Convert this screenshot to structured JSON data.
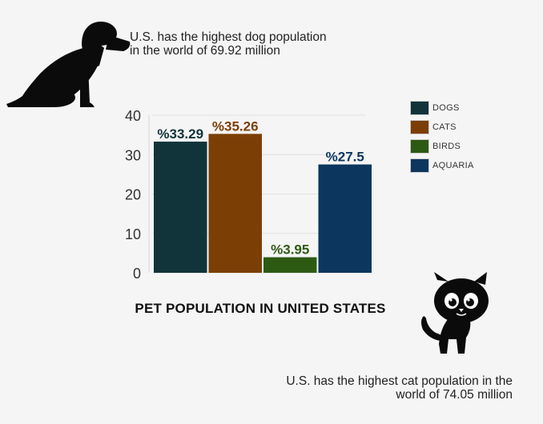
{
  "notes": {
    "dog": [
      "U.S. has the highest dog population",
      "in the world of 69.92 million"
    ],
    "cat": [
      "U.S. has the highest cat population in the",
      "world of 74.05 million"
    ]
  },
  "chart_data": {
    "type": "bar",
    "title": "PET POPULATION IN UNITED STATES",
    "categories": [
      "DOGS",
      "CATS",
      "BIRDS",
      "AQUARIA"
    ],
    "values": [
      33.29,
      35.26,
      3.95,
      27.5
    ],
    "data_labels": [
      "%33.29",
      "%35.26",
      "%3.95",
      "%27.5"
    ],
    "colors": [
      "#10343a",
      "#7b3f06",
      "#2d5a13",
      "#0d365e"
    ],
    "ylim": [
      0,
      40
    ],
    "yticks": [
      "0",
      "10",
      "20",
      "30",
      "40"
    ],
    "legend": [
      "DOGS",
      "CATS",
      "BIRDS",
      "AQUARIA"
    ],
    "legend_position": "top-right",
    "grid": true
  },
  "icons": {
    "dog": "dog-silhouette-icon",
    "cat": "cat-illustration-icon"
  }
}
